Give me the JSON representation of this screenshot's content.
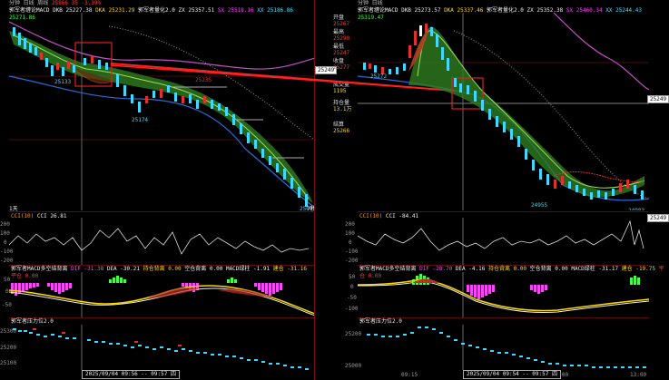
{
  "left": {
    "topbar": [
      "分钟",
      "日线",
      "周线",
      "25866",
      "35",
      "-3.39%"
    ],
    "legend_main": "郭军者缠论MACD",
    "dkb": "DKB 25227.38",
    "dka": "DKA 25231.29",
    "guojun": "郭军者量化2.0",
    "zx": "ZX 25357.51",
    "sx": "SX 25518.16",
    "xx": "XX 25186.86",
    "val": "25271.86",
    "labels": {
      "a": "25133",
      "b": "25235",
      "c": "25174",
      "d": "25009",
      "tag": "25249",
      "one_day": "1天",
      "sep": "7秒"
    },
    "cci": {
      "title": "CCI(10)",
      "val": "CCI 26.81",
      "ticks": [
        "200",
        "100",
        "0",
        "-100",
        "-200"
      ]
    },
    "macd": {
      "title": "郭军者MACD多空结背离",
      "dif": "DIF -31.38",
      "dea": "DEA -30.21",
      "peak": "持仓背离 0.00",
      "diverge": "空仓背离 0.00",
      "macd": "MACD绿柱 -1.91",
      "buy": "建仓 -31.16",
      "sell": "平仓 0.00",
      "ticks": [
        "50",
        "0",
        "-50"
      ]
    },
    "pressure": {
      "title": "郭军者压力位2.0",
      "ticks": [
        "25300",
        "25200",
        "25100"
      ]
    },
    "date": "2025/09/04 09:56 -- 09:57",
    "date_day": "四"
  },
  "right": {
    "topbar": [
      "分钟",
      "日线"
    ],
    "legend_main": "郭军者缠论MACD",
    "dkb": "DKB 25273.57",
    "dka": "DKA 25337.46",
    "guojun": "郭军者量化2.0",
    "zx": "ZX 25352.38",
    "sx": "SX 25460.34",
    "xx": "XX 25244.43",
    "val": "25319.47",
    "sidebar_code": "",
    "sidebar": [
      {
        "lbl": "开盘",
        "val": "25267"
      },
      {
        "lbl": "最高",
        "val": "25290"
      },
      {
        "lbl": "最低",
        "val": "25247"
      },
      {
        "lbl": "收盘",
        "val": "25277"
      },
      {
        "lbl": "成交量",
        "val": "1195"
      },
      {
        "lbl": "持仓量",
        "val": "13.1万"
      },
      {
        "lbl": "结算",
        "val": "25266"
      }
    ],
    "labels": {
      "a": "25272",
      "b": "24955",
      "tag": "25249",
      "tag2": "25249",
      "low": "24983",
      "low_time": "7秒"
    },
    "cci": {
      "title": "CCI(10)",
      "val": "CCI -84.41",
      "ticks": [
        "200",
        "100",
        "0",
        "-100",
        "-200"
      ]
    },
    "macd": {
      "title": "郭军者MACD多空结背离",
      "dif": "DIF -28.70",
      "dea": "DEA -4.16",
      "peak": "持仓背离 0.00",
      "diverge": "空仓背离 0.00",
      "macd": "MACD绿柱 -31.17",
      "buy": "建仓 -19.75",
      "sell": "平仓 0.00",
      "ticks": [
        "50",
        "0",
        "-50",
        "-100"
      ]
    },
    "pressure": {
      "title": "郭军者压力位2.0",
      "ticks": [
        "25200",
        "25000"
      ]
    },
    "times": [
      "09:15",
      "11:00",
      "13:00"
    ],
    "date": "2025/09/04 09:54 -- 09:57",
    "date_day": "四"
  }
}
